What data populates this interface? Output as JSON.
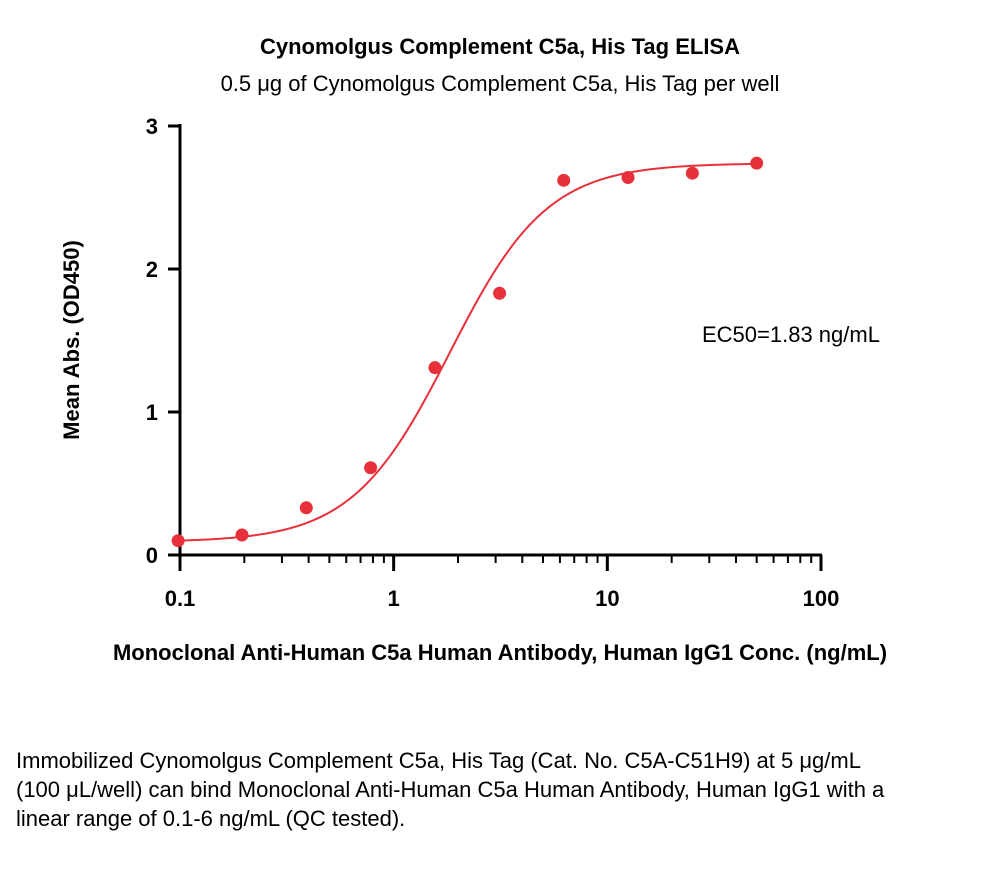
{
  "chart_data": {
    "type": "scatter",
    "title": "Cynomolgus Complement C5a, His Tag ELISA",
    "subtitle": "0.5 μg of Cynomolgus Complement C5a, His Tag per well",
    "xlabel": "Monoclonal Anti-Human C5a Human Antibody, Human IgG1 Conc. (ng/mL)",
    "ylabel": "Mean Abs. (OD450)",
    "x_scale": "log",
    "xlim": [
      0.1,
      100
    ],
    "ylim": [
      0,
      3
    ],
    "x_ticks": [
      "0.1",
      "1",
      "10",
      "100"
    ],
    "y_ticks": [
      "0",
      "1",
      "2",
      "3"
    ],
    "grid": false,
    "annotation": "EC50=1.83 ng/mL",
    "color": "#e8303a",
    "series": [
      {
        "points": [
          {
            "x": 0.098,
            "y": 0.1
          },
          {
            "x": 0.195,
            "y": 0.14
          },
          {
            "x": 0.39,
            "y": 0.33
          },
          {
            "x": 0.78,
            "y": 0.61
          },
          {
            "x": 1.56,
            "y": 1.31
          },
          {
            "x": 3.13,
            "y": 1.83
          },
          {
            "x": 6.25,
            "y": 2.62
          },
          {
            "x": 12.5,
            "y": 2.64
          },
          {
            "x": 25,
            "y": 2.67
          },
          {
            "x": 50,
            "y": 2.74
          }
        ],
        "fit": {
          "model": "4PL",
          "bottom": 0.09,
          "top": 2.74,
          "ec50": 1.83,
          "hill": 1.9
        }
      }
    ]
  },
  "caption": "Immobilized Cynomolgus Complement C5a, His Tag (Cat. No. C5A-C51H9) at 5 μg/mL (100 μL/well) can bind Monoclonal Anti-Human C5a Human Antibody, Human IgG1 with a linear range of 0.1-6 ng/mL (QC tested)."
}
